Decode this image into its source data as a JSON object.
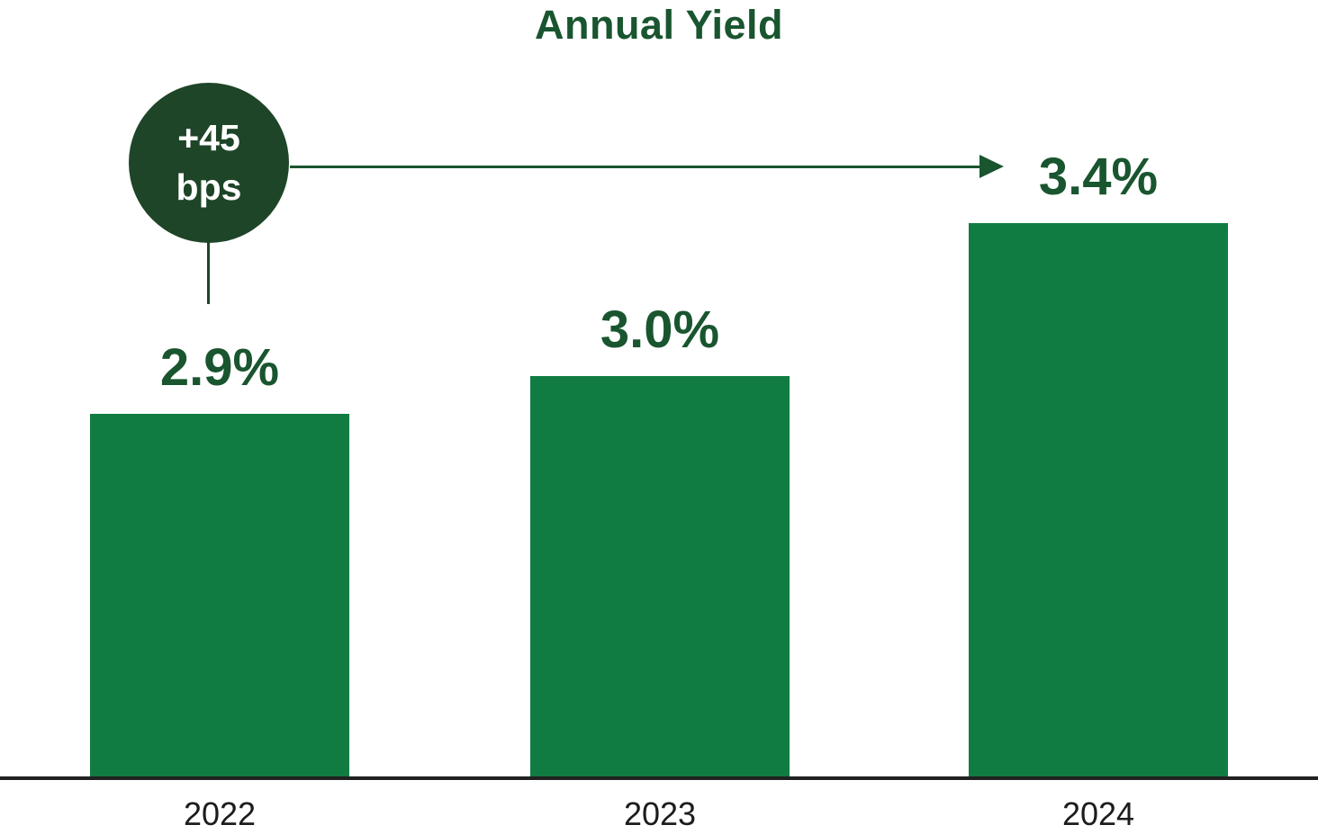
{
  "chart_data": {
    "type": "bar",
    "title": "Annual Yield",
    "categories": [
      "2022",
      "2023",
      "2024"
    ],
    "values": [
      2.9,
      3.0,
      3.4
    ],
    "value_labels": [
      "2.9%",
      "3.0%",
      "3.4%"
    ],
    "annotation": {
      "badge_lines": [
        "+45",
        "bps"
      ],
      "arrow_points_to": "3.4%"
    },
    "xlabel": "",
    "ylabel": "",
    "ylim": [
      1.95,
      3.7
    ],
    "grid": false,
    "legend": false,
    "colors": {
      "bar": "#107C41",
      "text_green": "#19552F",
      "badge_bg": "#1E4527",
      "badge_text": "#FFFFFF",
      "axis": "#212121",
      "tick_text": "#1C1C1C"
    }
  }
}
